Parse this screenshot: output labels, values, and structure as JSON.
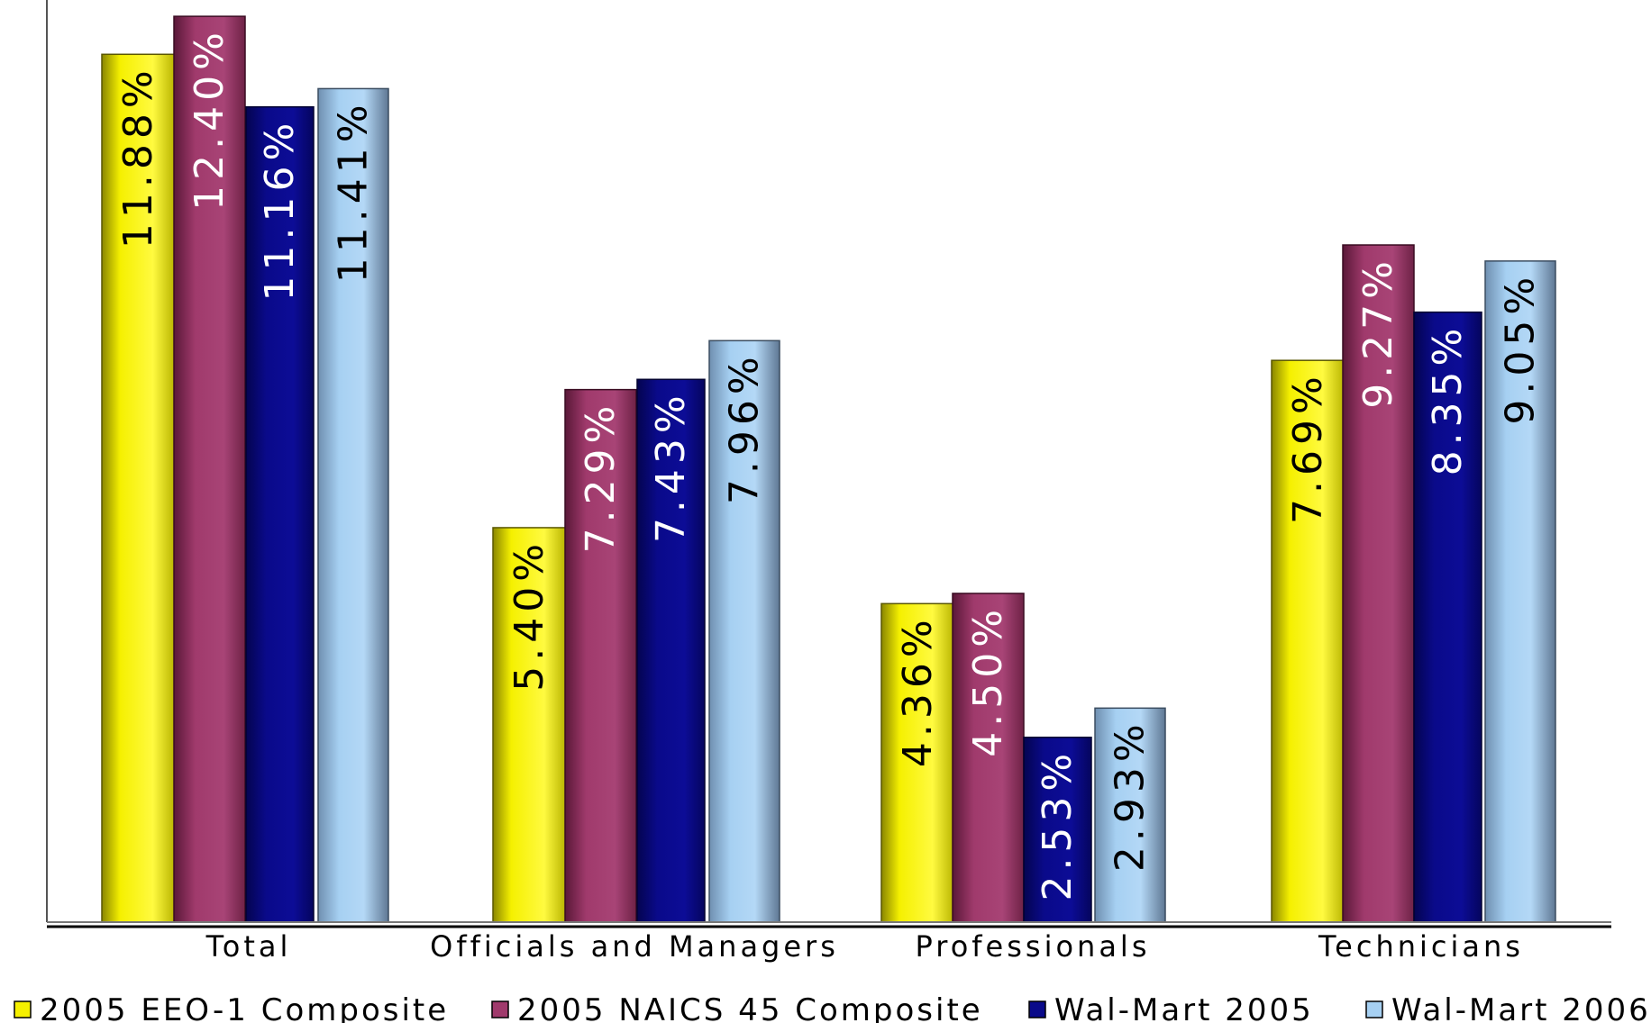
{
  "chart_data": {
    "type": "bar",
    "categories": [
      "Total",
      "Officials   and   Managers",
      "Professionals",
      "Technicians"
    ],
    "series": [
      {
        "name": "2005   EEO-1   Composite",
        "values": [
          11.88,
          5.4,
          4.36,
          7.69
        ],
        "labels": [
          "11.88%",
          "5.40%",
          "4.36%",
          "7.69%"
        ]
      },
      {
        "name": "2005   NAICS   45   Composite",
        "values": [
          12.4,
          7.29,
          4.5,
          9.27
        ],
        "labels": [
          "12.40%",
          "7.29%",
          "4.50%",
          "9.27%"
        ]
      },
      {
        "name": "Wal-Mart   2005",
        "values": [
          11.16,
          7.43,
          2.53,
          8.35
        ],
        "labels": [
          "11.16%",
          "7.43%",
          "2.53%",
          "8.35%"
        ]
      },
      {
        "name": "Wal-Mart   2006",
        "values": [
          11.41,
          7.96,
          2.93,
          9.05
        ],
        "labels": [
          "11.41%",
          "7.96%",
          "2.93%",
          "9.05%"
        ]
      }
    ],
    "ylim": [
      0,
      12.5
    ],
    "grid": false,
    "legend": "bottom",
    "colors": {
      "yellow": "#f5f000",
      "magenta": "#a03a6c",
      "navy": "#0a0a8a",
      "lightblue": "#a6d0f2"
    }
  }
}
